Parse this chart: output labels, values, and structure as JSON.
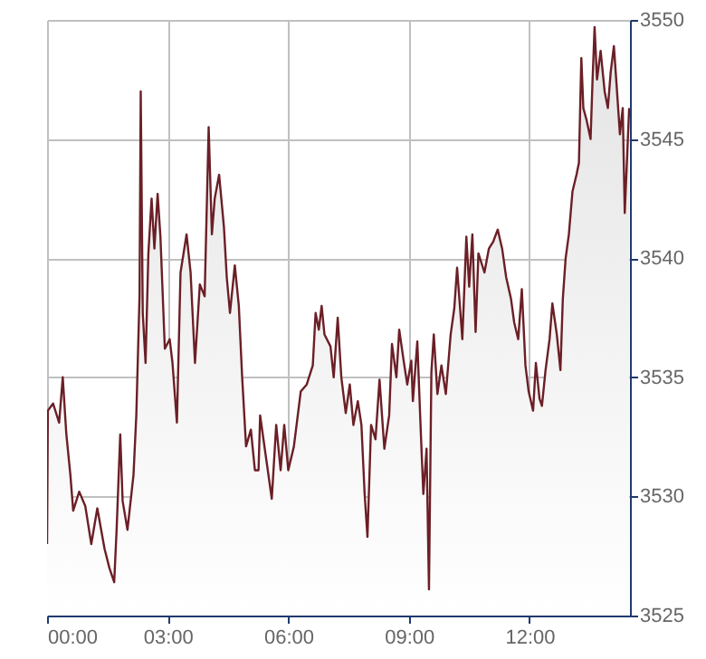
{
  "chart_data": {
    "type": "area",
    "xlim": [
      0,
      14.5
    ],
    "ylim": [
      3525,
      3550
    ],
    "xticks": [
      {
        "value": 0,
        "label": "00:00"
      },
      {
        "value": 3,
        "label": "03:00"
      },
      {
        "value": 6,
        "label": "06:00"
      },
      {
        "value": 9,
        "label": "09:00"
      },
      {
        "value": 12,
        "label": "12:00"
      }
    ],
    "yticks": [
      3525,
      3530,
      3535,
      3540,
      3545,
      3550
    ],
    "grid": true,
    "x": [
      0,
      0.02,
      0.15,
      0.3,
      0.39,
      0.48,
      0.58,
      0.65,
      0.8,
      0.95,
      1.1,
      1.25,
      1.43,
      1.55,
      1.67,
      1.73,
      1.82,
      1.88,
      2.0,
      2.15,
      2.22,
      2.3,
      2.33,
      2.38,
      2.45,
      2.52,
      2.6,
      2.67,
      2.75,
      2.82,
      2.93,
      3.05,
      3.12,
      3.23,
      3.32,
      3.47,
      3.57,
      3.68,
      3.8,
      3.92,
      4.02,
      4.1,
      4.17,
      4.28,
      4.4,
      4.47,
      4.55,
      4.67,
      4.77,
      4.85,
      4.95,
      5.07,
      5.17,
      5.26,
      5.3,
      5.59,
      5.7,
      5.81,
      5.9,
      6.0,
      6.14,
      6.31,
      6.46,
      6.61,
      6.68,
      6.76,
      6.83,
      6.9,
      7.05,
      7.13,
      7.23,
      7.32,
      7.43,
      7.53,
      7.62,
      7.73,
      7.82,
      7.9,
      7.97,
      8.06,
      8.17,
      8.27,
      8.39,
      8.51,
      8.58,
      8.69,
      8.76,
      8.87,
      8.96,
      9.06,
      9.1,
      9.21,
      9.29,
      9.36,
      9.44,
      9.5,
      9.56,
      9.62,
      9.71,
      9.81,
      9.92,
      10.04,
      10.13,
      10.2,
      10.33,
      10.43,
      10.5,
      10.58,
      10.66,
      10.73,
      10.88,
      10.99,
      11.1,
      11.21,
      11.32,
      11.42,
      11.54,
      11.62,
      11.72,
      11.81,
      11.9,
      11.98,
      12.09,
      12.16,
      12.25,
      12.31,
      12.4,
      12.5,
      12.57,
      12.68,
      12.77,
      12.83,
      12.9,
      12.98,
      13.07,
      13.17,
      13.23,
      13.29,
      13.34,
      13.42,
      13.52,
      13.57,
      13.62,
      13.68,
      13.77,
      13.87,
      13.95,
      14.02,
      14.1,
      14.17,
      14.25,
      14.32,
      14.37,
      14.43,
      14.48
    ],
    "series": [
      {
        "color": "#6b1f26",
        "values": [
          3528.0,
          3533.6,
          3533.9,
          3533.1,
          3535.0,
          3532.6,
          3530.9,
          3529.4,
          3530.2,
          3529.6,
          3528.0,
          3529.5,
          3527.8,
          3527.0,
          3526.4,
          3528.6,
          3532.6,
          3529.8,
          3528.6,
          3530.9,
          3533.4,
          3538.4,
          3547.0,
          3537.7,
          3535.6,
          3540.2,
          3542.5,
          3540.4,
          3542.7,
          3540.9,
          3536.2,
          3536.6,
          3535.6,
          3533.1,
          3539.4,
          3541.0,
          3539.4,
          3535.6,
          3538.9,
          3538.4,
          3545.5,
          3541.0,
          3542.5,
          3543.5,
          3541.3,
          3539.2,
          3537.7,
          3539.7,
          3538.0,
          3535.1,
          3532.1,
          3532.8,
          3531.1,
          3531.1,
          3533.4,
          3529.9,
          3533.0,
          3531.1,
          3533.0,
          3531.1,
          3532.1,
          3534.4,
          3534.7,
          3535.5,
          3537.7,
          3537.0,
          3538.0,
          3536.8,
          3536.3,
          3535.0,
          3537.5,
          3535.0,
          3533.5,
          3534.7,
          3533.0,
          3534.0,
          3533.0,
          3530.1,
          3528.3,
          3533.0,
          3532.4,
          3534.9,
          3532.0,
          3533.4,
          3536.4,
          3535.0,
          3537.0,
          3535.7,
          3534.7,
          3535.7,
          3534.0,
          3536.5,
          3533.0,
          3530.1,
          3532.0,
          3526.1,
          3535.2,
          3536.8,
          3534.3,
          3535.5,
          3534.3,
          3536.8,
          3537.9,
          3539.6,
          3536.6,
          3540.9,
          3538.8,
          3541.0,
          3536.9,
          3540.2,
          3539.4,
          3540.4,
          3540.7,
          3541.2,
          3540.4,
          3539.2,
          3538.3,
          3537.3,
          3536.6,
          3538.7,
          3535.5,
          3534.4,
          3533.6,
          3535.6,
          3534.1,
          3533.8,
          3535.3,
          3536.6,
          3538.1,
          3536.8,
          3535.3,
          3538.3,
          3540.0,
          3541.0,
          3542.8,
          3543.5,
          3544.0,
          3548.4,
          3546.3,
          3545.8,
          3545.0,
          3547.5,
          3549.7,
          3547.5,
          3548.7,
          3547.0,
          3546.3,
          3547.8,
          3548.9,
          3547.2,
          3545.2,
          3546.3,
          3541.9,
          3544.3,
          3546.3
        ]
      }
    ]
  }
}
